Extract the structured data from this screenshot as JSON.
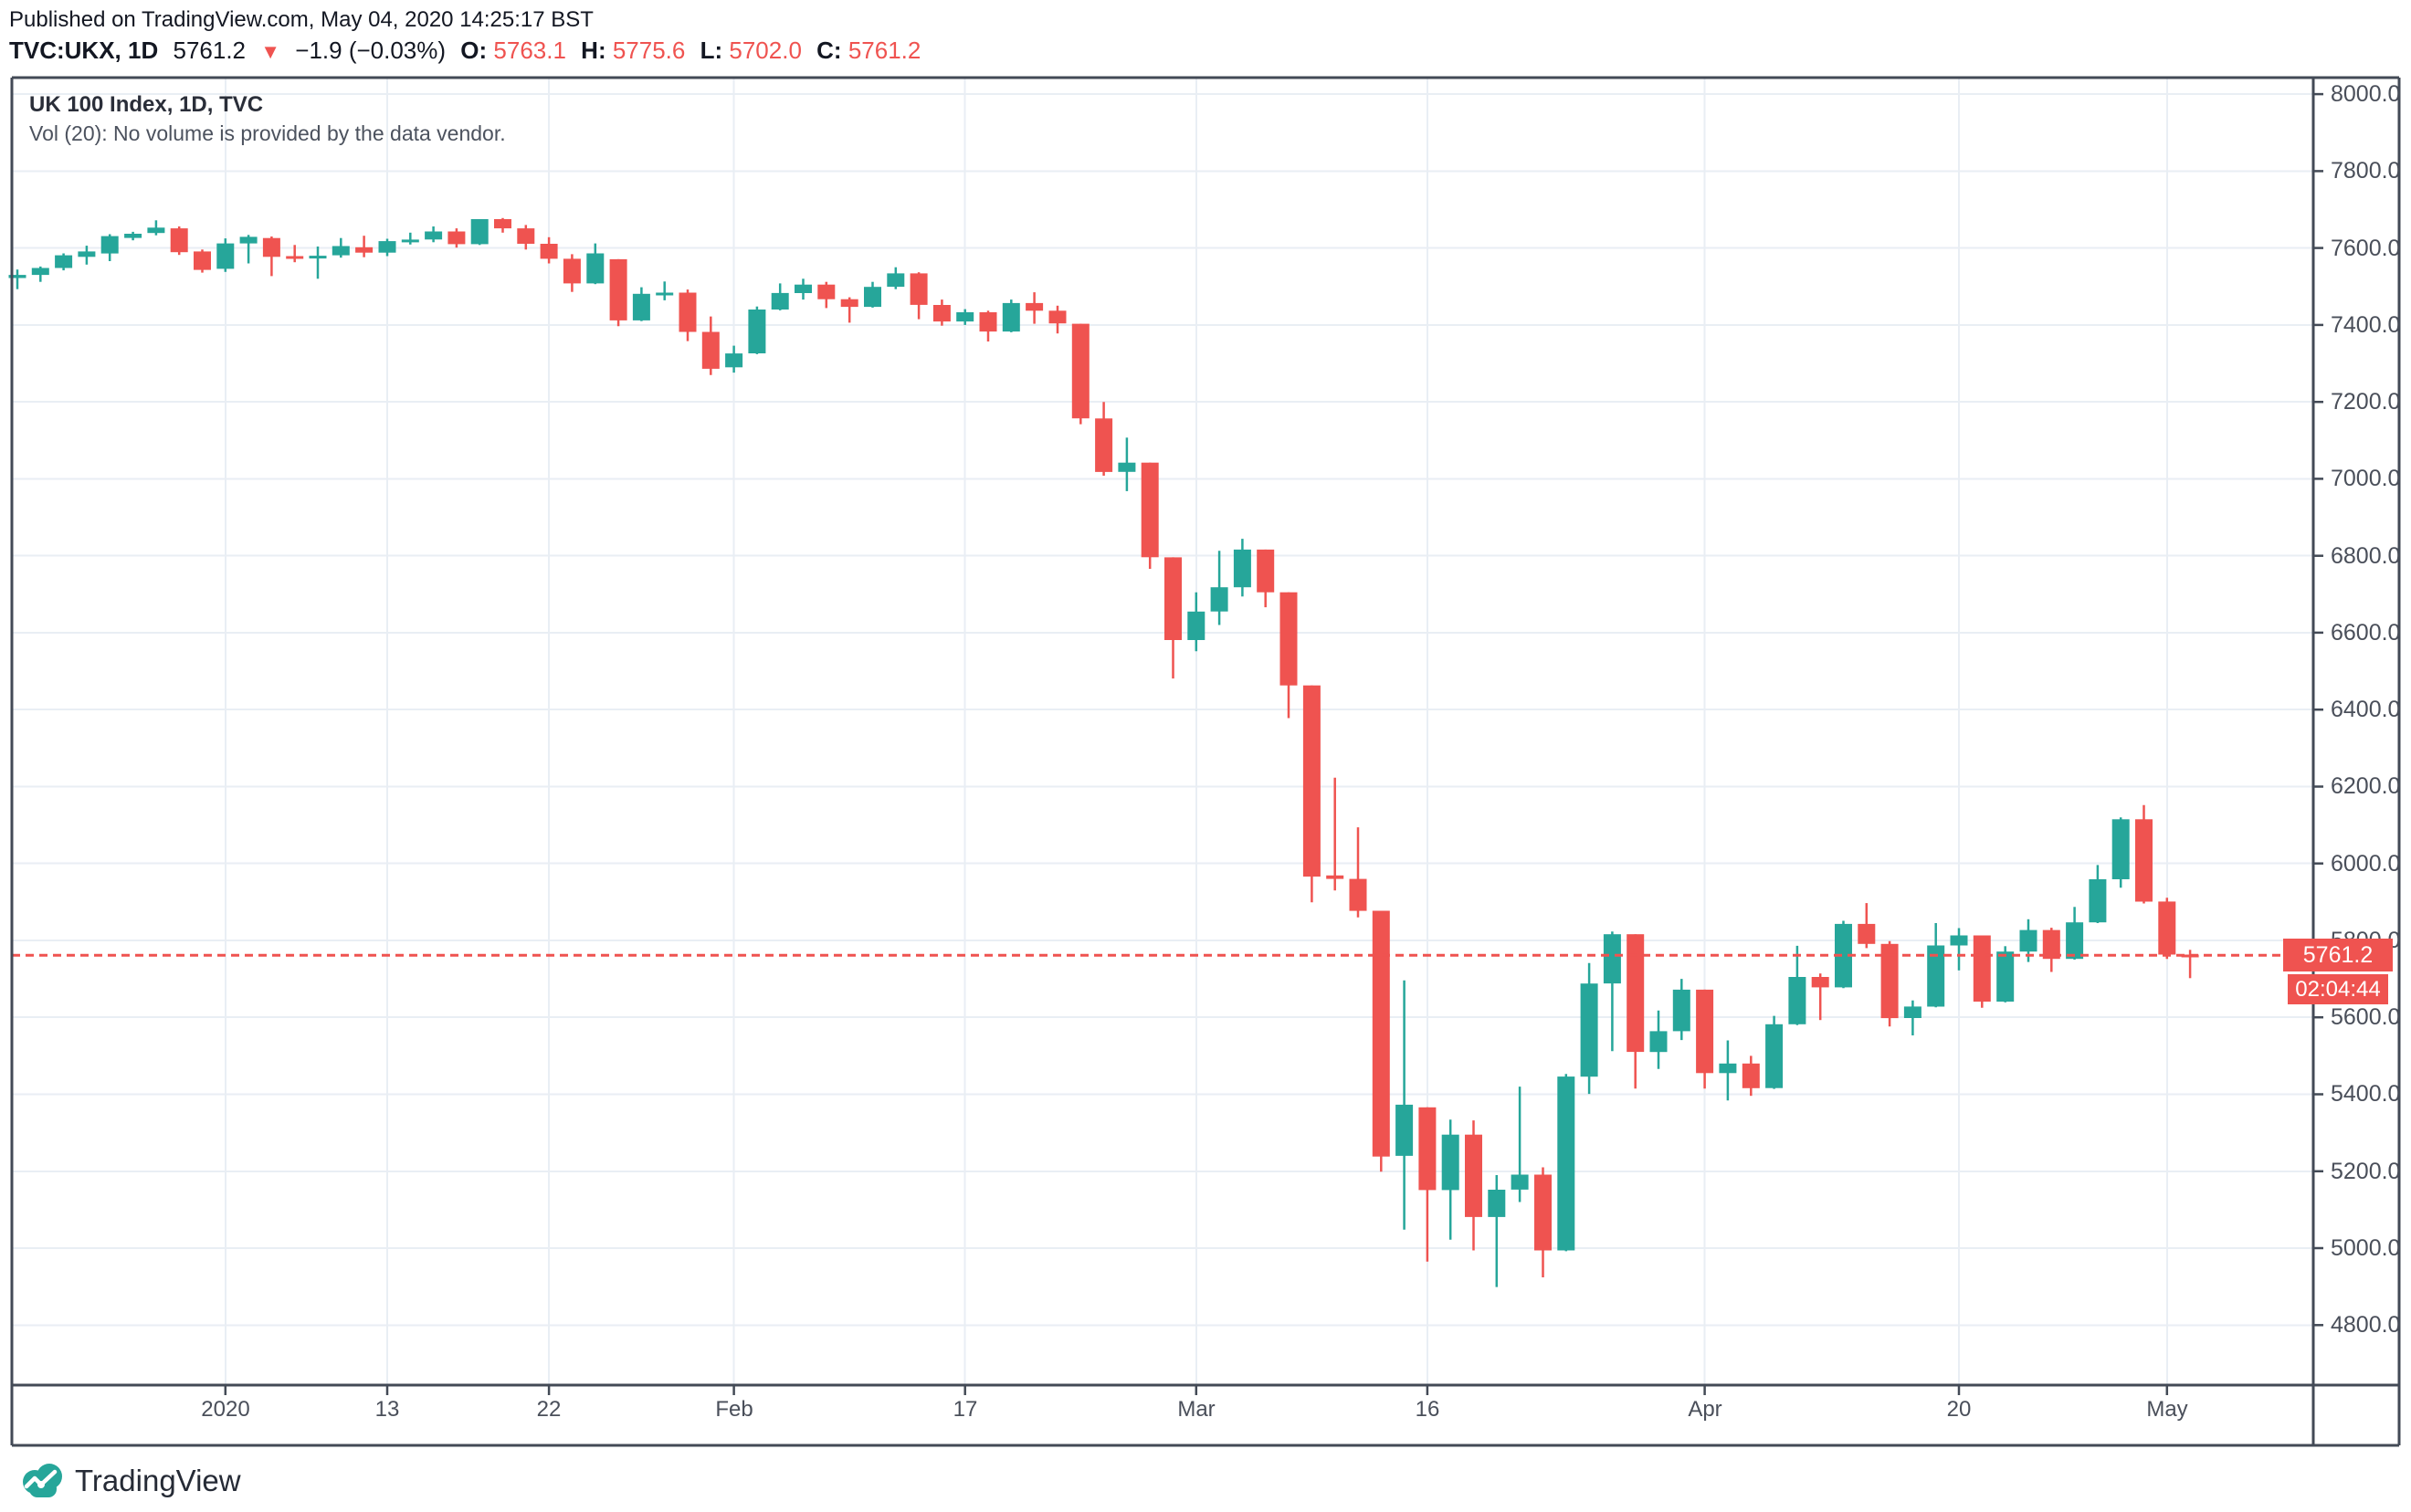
{
  "header": {
    "published": "Published on TradingView.com, May 04, 2020 14:25:17 BST",
    "symbol": "TVC:UKX, 1D",
    "last": "5761.2",
    "direction_icon": "▼",
    "change": "−1.9 (−0.03%)",
    "ohlc": {
      "o_label": "O:",
      "o": "5763.1",
      "h_label": "H:",
      "h": "5775.6",
      "l_label": "L:",
      "l": "5702.0",
      "c_label": "C:",
      "c": "5761.2"
    }
  },
  "legend": {
    "title": "UK 100 Index, 1D, TVC",
    "vol_note": "Vol (20): No volume is provided by the data vendor."
  },
  "price_label": "5761.2",
  "countdown": "02:04:44",
  "footer": {
    "brand": "TradingView"
  },
  "colors": {
    "up": "#26a69a",
    "down": "#ef5350",
    "grid": "#e9eef4",
    "frame": "#434a56",
    "axis_text": "#4a4f5a",
    "last_price_line": "#ef5350"
  },
  "chart_data": {
    "type": "candlestick",
    "title": "UK 100 Index, 1D, TVC",
    "last_price": 5761.2,
    "y_axis": {
      "top_price": 8043,
      "bottom_price": 4644,
      "tick_start": 8000,
      "tick_step": 200,
      "tick_labels": [
        "8000.0",
        "7800.0",
        "7600.0",
        "7400.0",
        "7200.0",
        "7000.0",
        "6800.0",
        "6600.0",
        "6400.0",
        "6200.0",
        "6000.0",
        "5800.0",
        "5600.0",
        "5400.0",
        "5200.0",
        "5000.0",
        "4800.0"
      ]
    },
    "x_ticks": [
      {
        "label": "2020",
        "bar": 9
      },
      {
        "label": "13",
        "bar": 16
      },
      {
        "label": "22",
        "bar": 23
      },
      {
        "label": "Feb",
        "bar": 31
      },
      {
        "label": "17",
        "bar": 41
      },
      {
        "label": "Mar",
        "bar": 51
      },
      {
        "label": "16",
        "bar": 61
      },
      {
        "label": "Apr",
        "bar": 73
      },
      {
        "label": "20",
        "bar": 84
      },
      {
        "label": "May",
        "bar": 93
      }
    ],
    "candles": [
      [
        "2019-12-17",
        7522,
        7544,
        7493,
        7530
      ],
      [
        "2019-12-18",
        7530,
        7552,
        7512,
        7548
      ],
      [
        "2019-12-19",
        7548,
        7586,
        7542,
        7581
      ],
      [
        "2019-12-20",
        7577,
        7606,
        7557,
        7591
      ],
      [
        "2019-12-23",
        7586,
        7636,
        7566,
        7631
      ],
      [
        "2019-12-24",
        7626,
        7642,
        7620,
        7637
      ],
      [
        "2019-12-27",
        7639,
        7672,
        7633,
        7653
      ],
      [
        "2019-12-30",
        7651,
        7656,
        7582,
        7589
      ],
      [
        "2019-12-31",
        7591,
        7596,
        7536,
        7543
      ],
      [
        "2020-01-02",
        7546,
        7625,
        7538,
        7612
      ],
      [
        "2020-01-03",
        7612,
        7634,
        7560,
        7629
      ],
      [
        "2020-01-06",
        7626,
        7630,
        7527,
        7577
      ],
      [
        "2020-01-07",
        7579,
        7608,
        7563,
        7574
      ],
      [
        "2020-01-08",
        7575,
        7604,
        7520,
        7580
      ],
      [
        "2020-01-09",
        7581,
        7626,
        7575,
        7605
      ],
      [
        "2020-01-10",
        7602,
        7632,
        7576,
        7588
      ],
      [
        "2020-01-13",
        7588,
        7624,
        7579,
        7618
      ],
      [
        "2020-01-14",
        7618,
        7640,
        7609,
        7622
      ],
      [
        "2020-01-15",
        7622,
        7656,
        7615,
        7643
      ],
      [
        "2020-01-16",
        7643,
        7651,
        7601,
        7610
      ],
      [
        "2020-01-17",
        7610,
        7675,
        7608,
        7675
      ],
      [
        "2020-01-20",
        7675,
        7678,
        7640,
        7651
      ],
      [
        "2020-01-21",
        7651,
        7660,
        7596,
        7611
      ],
      [
        "2020-01-22",
        7611,
        7628,
        7560,
        7572
      ],
      [
        "2020-01-23",
        7572,
        7584,
        7486,
        7508
      ],
      [
        "2020-01-24",
        7508,
        7612,
        7506,
        7586
      ],
      [
        "2020-01-27",
        7571,
        7571,
        7397,
        7412
      ],
      [
        "2020-01-28",
        7412,
        7498,
        7410,
        7481
      ],
      [
        "2020-01-29",
        7481,
        7513,
        7464,
        7484
      ],
      [
        "2020-01-30",
        7484,
        7492,
        7358,
        7382
      ],
      [
        "2020-01-31",
        7382,
        7422,
        7270,
        7286
      ],
      [
        "2020-02-03",
        7290,
        7346,
        7276,
        7326
      ],
      [
        "2020-02-04",
        7326,
        7448,
        7324,
        7440
      ],
      [
        "2020-02-05",
        7440,
        7508,
        7438,
        7483
      ],
      [
        "2020-02-06",
        7483,
        7520,
        7466,
        7505
      ],
      [
        "2020-02-07",
        7505,
        7512,
        7444,
        7467
      ],
      [
        "2020-02-10",
        7467,
        7472,
        7406,
        7447
      ],
      [
        "2020-02-11",
        7447,
        7512,
        7445,
        7499
      ],
      [
        "2020-02-12",
        7499,
        7550,
        7493,
        7534
      ],
      [
        "2020-02-13",
        7534,
        7537,
        7415,
        7452
      ],
      [
        "2020-02-14",
        7452,
        7466,
        7398,
        7409
      ],
      [
        "2020-02-17",
        7409,
        7441,
        7400,
        7433
      ],
      [
        "2020-02-18",
        7433,
        7437,
        7357,
        7383
      ],
      [
        "2020-02-19",
        7383,
        7466,
        7381,
        7457
      ],
      [
        "2020-02-20",
        7457,
        7485,
        7403,
        7437
      ],
      [
        "2020-02-21",
        7437,
        7450,
        7378,
        7404
      ],
      [
        "2020-02-24",
        7403,
        7403,
        7142,
        7157
      ],
      [
        "2020-02-25",
        7157,
        7200,
        7008,
        7018
      ],
      [
        "2020-02-26",
        7018,
        7107,
        6968,
        7042
      ],
      [
        "2020-02-27",
        7042,
        7042,
        6766,
        6796
      ],
      [
        "2020-02-28",
        6796,
        6796,
        6481,
        6581
      ],
      [
        "2020-03-02",
        6581,
        6705,
        6552,
        6655
      ],
      [
        "2020-03-03",
        6655,
        6813,
        6620,
        6718
      ],
      [
        "2020-03-04",
        6718,
        6844,
        6694,
        6816
      ],
      [
        "2020-03-05",
        6816,
        6816,
        6666,
        6705
      ],
      [
        "2020-03-06",
        6705,
        6705,
        6378,
        6463
      ],
      [
        "2020-03-09",
        6463,
        6463,
        5899,
        5966
      ],
      [
        "2020-03-10",
        5969,
        6223,
        5930,
        5960
      ],
      [
        "2020-03-11",
        5960,
        6094,
        5860,
        5877
      ],
      [
        "2020-03-12",
        5877,
        5877,
        5199,
        5238
      ],
      [
        "2020-03-13",
        5240,
        5696,
        5048,
        5373
      ],
      [
        "2020-03-16",
        5366,
        5366,
        4965,
        5151
      ],
      [
        "2020-03-17",
        5151,
        5334,
        5022,
        5295
      ],
      [
        "2020-03-18",
        5295,
        5332,
        4994,
        5081
      ],
      [
        "2020-03-19",
        5081,
        5190,
        4899,
        5152
      ],
      [
        "2020-03-20",
        5152,
        5420,
        5120,
        5191
      ],
      [
        "2020-03-23",
        5191,
        5210,
        4924,
        4994
      ],
      [
        "2020-03-24",
        4994,
        5453,
        4992,
        5446
      ],
      [
        "2020-03-25",
        5446,
        5741,
        5401,
        5688
      ],
      [
        "2020-03-26",
        5688,
        5823,
        5512,
        5816
      ],
      [
        "2020-03-27",
        5816,
        5816,
        5415,
        5510
      ],
      [
        "2020-03-30",
        5510,
        5618,
        5466,
        5564
      ],
      [
        "2020-03-31",
        5564,
        5700,
        5541,
        5672
      ],
      [
        "2020-04-01",
        5672,
        5672,
        5415,
        5455
      ],
      [
        "2020-04-02",
        5455,
        5540,
        5384,
        5480
      ],
      [
        "2020-04-03",
        5480,
        5500,
        5396,
        5416
      ],
      [
        "2020-04-06",
        5416,
        5604,
        5414,
        5582
      ],
      [
        "2020-04-07",
        5582,
        5786,
        5580,
        5705
      ],
      [
        "2020-04-08",
        5705,
        5714,
        5593,
        5678
      ],
      [
        "2020-04-09",
        5678,
        5851,
        5676,
        5843
      ],
      [
        "2020-04-14",
        5843,
        5897,
        5780,
        5791
      ],
      [
        "2020-04-15",
        5791,
        5798,
        5576,
        5598
      ],
      [
        "2020-04-16",
        5598,
        5644,
        5553,
        5628
      ],
      [
        "2020-04-17",
        5628,
        5845,
        5626,
        5787
      ],
      [
        "2020-04-20",
        5787,
        5832,
        5722,
        5813
      ],
      [
        "2020-04-21",
        5813,
        5813,
        5625,
        5641
      ],
      [
        "2020-04-22",
        5641,
        5785,
        5639,
        5771
      ],
      [
        "2020-04-23",
        5771,
        5855,
        5744,
        5827
      ],
      [
        "2020-04-24",
        5827,
        5833,
        5718,
        5752
      ],
      [
        "2020-04-27",
        5752,
        5887,
        5750,
        5847
      ],
      [
        "2020-04-28",
        5847,
        5996,
        5845,
        5959
      ],
      [
        "2020-04-29",
        5959,
        6120,
        5937,
        6115
      ],
      [
        "2020-04-30",
        6115,
        6152,
        5896,
        5901
      ],
      [
        "2020-05-01",
        5901,
        5911,
        5752,
        5763
      ],
      [
        "2020-05-04",
        5763.1,
        5775.6,
        5702.0,
        5761.2
      ]
    ]
  }
}
